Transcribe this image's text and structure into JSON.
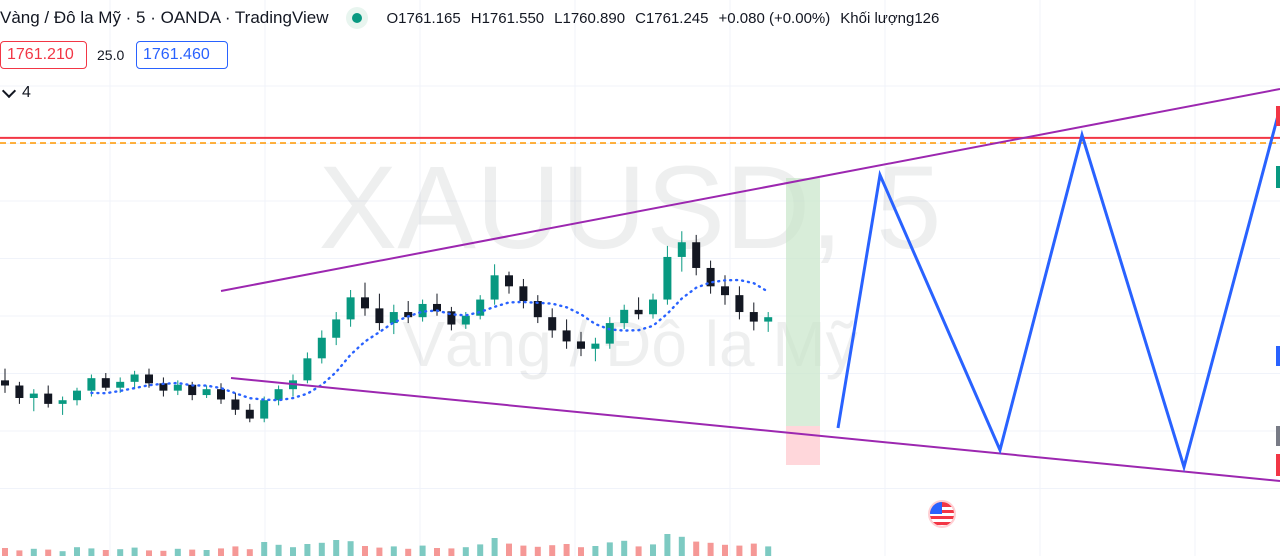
{
  "header": {
    "symbol_title": "Vàng / Đô la Mỹ · 5 · OANDA · TradingView",
    "ohlc": {
      "open_label": "O",
      "open": "1761.165",
      "high_label": "H",
      "high": "1761.550",
      "low_label": "L",
      "low": "1760.890",
      "close_label": "C",
      "close": "1761.245",
      "change": "+0.080 (+0.00%)",
      "volume_label": "Khối lượng",
      "volume": "126"
    }
  },
  "trade": {
    "sell_price": "1761.210",
    "spread": "25.0",
    "buy_price": "1761.460"
  },
  "indicators": {
    "count": "4"
  },
  "watermark": {
    "ticker": "XAUUSD, 5",
    "description": "Vàng / Đô la Mỹ"
  },
  "colors": {
    "up": "#089981",
    "down": "#131722",
    "wedge": "#9c27b0",
    "projection": "#2962ff",
    "resistance": "#f23645",
    "dashed": "#ff9800",
    "ma": "#2962ff",
    "target": "#c8e6c9",
    "stop": "#ffcdd2"
  },
  "chart_data": {
    "type": "candlestick",
    "timeframe": "5",
    "series": [
      {
        "values": [
          [
            1759.62,
            1759.78,
            1759.45,
            1759.55
          ],
          [
            1759.55,
            1759.6,
            1759.3,
            1759.38
          ],
          [
            1759.38,
            1759.5,
            1759.2,
            1759.44
          ],
          [
            1759.44,
            1759.55,
            1759.25,
            1759.3
          ],
          [
            1759.3,
            1759.4,
            1759.15,
            1759.35
          ],
          [
            1759.35,
            1759.52,
            1759.28,
            1759.48
          ],
          [
            1759.48,
            1759.7,
            1759.4,
            1759.65
          ],
          [
            1759.65,
            1759.72,
            1759.48,
            1759.52
          ],
          [
            1759.52,
            1759.66,
            1759.45,
            1759.6
          ],
          [
            1759.6,
            1759.75,
            1759.5,
            1759.7
          ],
          [
            1759.7,
            1759.78,
            1759.52,
            1759.58
          ],
          [
            1759.58,
            1759.66,
            1759.4,
            1759.48
          ],
          [
            1759.48,
            1759.62,
            1759.42,
            1759.56
          ],
          [
            1759.56,
            1759.6,
            1759.35,
            1759.42
          ],
          [
            1759.42,
            1759.55,
            1759.38,
            1759.5
          ],
          [
            1759.5,
            1759.58,
            1759.3,
            1759.36
          ],
          [
            1759.36,
            1759.45,
            1759.15,
            1759.22
          ],
          [
            1759.22,
            1759.3,
            1759.05,
            1759.1
          ],
          [
            1759.1,
            1759.4,
            1759.05,
            1759.35
          ],
          [
            1759.35,
            1759.55,
            1759.28,
            1759.5
          ],
          [
            1759.5,
            1759.7,
            1759.4,
            1759.62
          ],
          [
            1759.62,
            1760.0,
            1759.58,
            1759.92
          ],
          [
            1759.92,
            1760.3,
            1759.85,
            1760.2
          ],
          [
            1760.2,
            1760.55,
            1760.1,
            1760.45
          ],
          [
            1760.45,
            1760.85,
            1760.35,
            1760.75
          ],
          [
            1760.75,
            1760.95,
            1760.5,
            1760.6
          ],
          [
            1760.6,
            1760.8,
            1760.3,
            1760.4
          ],
          [
            1760.4,
            1760.65,
            1760.25,
            1760.55
          ],
          [
            1760.55,
            1760.7,
            1760.4,
            1760.48
          ],
          [
            1760.48,
            1760.72,
            1760.42,
            1760.66
          ],
          [
            1760.66,
            1760.8,
            1760.5,
            1760.56
          ],
          [
            1760.56,
            1760.62,
            1760.3,
            1760.38
          ],
          [
            1760.38,
            1760.55,
            1760.32,
            1760.5
          ],
          [
            1760.5,
            1760.78,
            1760.45,
            1760.72
          ],
          [
            1760.72,
            1761.2,
            1760.65,
            1761.05
          ],
          [
            1761.05,
            1761.1,
            1760.8,
            1760.9
          ],
          [
            1760.9,
            1761.0,
            1760.6,
            1760.7
          ],
          [
            1760.7,
            1760.78,
            1760.4,
            1760.48
          ],
          [
            1760.48,
            1760.6,
            1760.2,
            1760.3
          ],
          [
            1760.3,
            1760.45,
            1760.05,
            1760.15
          ],
          [
            1760.15,
            1760.28,
            1759.95,
            1760.05
          ],
          [
            1760.05,
            1760.2,
            1759.88,
            1760.12
          ],
          [
            1760.12,
            1760.48,
            1760.05,
            1760.4
          ],
          [
            1760.4,
            1760.65,
            1760.32,
            1760.58
          ],
          [
            1760.58,
            1760.75,
            1760.45,
            1760.52
          ],
          [
            1760.52,
            1760.8,
            1760.46,
            1760.72
          ],
          [
            1760.72,
            1761.45,
            1760.65,
            1761.3
          ],
          [
            1761.3,
            1761.65,
            1761.1,
            1761.5
          ],
          [
            1761.5,
            1761.6,
            1761.05,
            1761.15
          ],
          [
            1761.15,
            1761.25,
            1760.8,
            1760.9
          ],
          [
            1760.9,
            1761.05,
            1760.65,
            1760.78
          ],
          [
            1760.78,
            1760.9,
            1760.45,
            1760.55
          ],
          [
            1760.55,
            1760.68,
            1760.3,
            1760.42
          ],
          [
            1760.42,
            1760.55,
            1760.28,
            1760.48
          ]
        ],
        "volume": [
          20,
          14,
          18,
          16,
          12,
          22,
          19,
          15,
          17,
          21,
          14,
          13,
          18,
          16,
          15,
          19,
          24,
          17,
          35,
          28,
          22,
          30,
          33,
          40,
          37,
          25,
          21,
          24,
          18,
          26,
          20,
          19,
          22,
          29,
          45,
          31,
          26,
          23,
          27,
          30,
          22,
          25,
          34,
          38,
          24,
          29,
          55,
          48,
          36,
          33,
          28,
          26,
          31,
          24
        ]
      }
    ],
    "ylim": [
      1758.4,
      1763.3
    ],
    "price_lines": [
      1762.92,
      1762.85
    ],
    "grid": true,
    "legend": "top-left"
  }
}
